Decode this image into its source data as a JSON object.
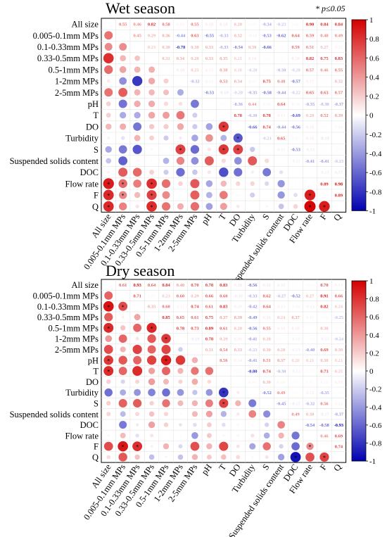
{
  "note": "* p≤0.05",
  "colorbar": {
    "ticks": [
      "1",
      "0.8",
      "0.6",
      "0.4",
      "0.2",
      "0",
      "-0.2",
      "-0.4",
      "-0.6",
      "-0.8",
      "-1"
    ],
    "colors": {
      "positive": "#d40000",
      "neutral": "#ffffff",
      "negative": "#0000b0"
    }
  },
  "chart_data": [
    {
      "type": "heatmap",
      "title": "Wet season",
      "variables": [
        "All size",
        "0.005-0.1mm MPs",
        "0.1-0.33mm MPs",
        "0.33-0.5mm MPs",
        "0.5-1mm MPs",
        "1-2mm MPs",
        "2-5mm MPs",
        "pH",
        "T",
        "DO",
        "Turbidity",
        "S",
        "Suspended solids content",
        "DOC",
        "Flow rate",
        "F",
        "Q"
      ],
      "values": [
        [
          1,
          0.55,
          0.46,
          0.82,
          0.58,
          0.09,
          0.55,
          0.18,
          0.18,
          0.28,
          0.06,
          -0.34,
          -0.23,
          0.06,
          0.9,
          0.84,
          0.84
        ],
        [
          0.55,
          1,
          0.45,
          0.29,
          0.36,
          -0.44,
          0.63,
          -0.55,
          -0.33,
          0.32,
          -0.11,
          -0.53,
          -0.62,
          0.64,
          0.59,
          0.48,
          0.49
        ],
        [
          0.46,
          0.45,
          1,
          0.23,
          0.3,
          -0.78,
          0.3,
          0.33,
          -0.33,
          -0.54,
          0.3,
          -0.66,
          0.03,
          0.59,
          0.51,
          0.27,
          0.11
        ],
        [
          0.82,
          0.29,
          0.23,
          1,
          0.31,
          0.34,
          0.28,
          0.33,
          0.35,
          0.21,
          0.18,
          0.04,
          0.03,
          0.18,
          0.82,
          0.75,
          0.83
        ],
        [
          0.58,
          0.36,
          0.3,
          0.31,
          1,
          0.19,
          0.25,
          0.15,
          0.38,
          0.2,
          -0.2,
          0.02,
          -0.3,
          -0.2,
          0.57,
          0.46,
          0.55
        ],
        [
          0.09,
          -0.44,
          -0.78,
          0.34,
          0.19,
          1,
          -0.32,
          0.12,
          0.53,
          0.34,
          -0.07,
          0.75,
          0.48,
          -0.57,
          0.17,
          0.02,
          0.32
        ],
        [
          0.55,
          0.63,
          0.3,
          0.28,
          0.25,
          -0.32,
          1,
          -0.53,
          -0.19,
          -0.2,
          -0.35,
          -0.58,
          -0.44,
          -0.22,
          0.65,
          0.63,
          0.57
        ],
        [
          0.18,
          -0.55,
          0.33,
          0.33,
          0.15,
          0.12,
          -0.53,
          1,
          0.02,
          -0.36,
          0.44,
          0.1,
          0.64,
          0.1,
          -0.35,
          -0.3,
          -0.37
        ],
        [
          0.18,
          -0.33,
          -0.33,
          0.35,
          0.38,
          0.53,
          -0.19,
          0.02,
          1,
          0.78,
          -0.3,
          0.78,
          0.15,
          -0.69,
          0.28,
          0.52,
          0.39
        ],
        [
          0.28,
          0.32,
          -0.54,
          0.21,
          0.2,
          0.34,
          -0.2,
          -0.36,
          0.78,
          1,
          -0.66,
          0.74,
          -0.44,
          -0.56,
          0.16,
          0.03,
          0.09
        ],
        [
          0.06,
          -0.11,
          0.3,
          0.18,
          -0.2,
          -0.07,
          -0.35,
          0.44,
          -0.3,
          -0.66,
          1,
          -0.21,
          0.65,
          0.07,
          0.16,
          -0.19,
          0.01
        ],
        [
          -0.34,
          -0.53,
          -0.66,
          0.04,
          0.02,
          0.75,
          -0.58,
          0.1,
          0.78,
          0.74,
          -0.21,
          1,
          0.15,
          -0.53,
          -0.15,
          0.02,
          0.04
        ],
        [
          -0.23,
          -0.62,
          0.03,
          0.03,
          -0.3,
          0.48,
          -0.44,
          0.64,
          0.15,
          -0.44,
          0.65,
          0.15,
          1,
          -0.11,
          -0.41,
          -0.41,
          -0.23
        ],
        [
          0.06,
          0.64,
          0.59,
          0.18,
          -0.2,
          -0.57,
          -0.22,
          0.1,
          -0.69,
          -0.56,
          0.07,
          -0.53,
          -0.11,
          1,
          0.02,
          -0.13,
          0.17
        ],
        [
          0.9,
          0.59,
          0.51,
          0.82,
          0.57,
          0.17,
          0.65,
          -0.35,
          0.28,
          0.16,
          0.16,
          -0.15,
          -0.41,
          0.02,
          1,
          0.89,
          0.98
        ],
        [
          0.84,
          0.48,
          0.27,
          0.75,
          0.46,
          0.02,
          0.63,
          -0.3,
          0.52,
          0.03,
          -0.19,
          0.02,
          -0.41,
          -0.13,
          0.89,
          1,
          0.89
        ],
        [
          0.84,
          0.49,
          0.11,
          0.83,
          0.55,
          0.32,
          0.57,
          -0.37,
          0.39,
          0.09,
          0.01,
          0.04,
          -0.23,
          0.17,
          0.98,
          0.89,
          1
        ]
      ],
      "significant": [
        [
          0,
          14
        ],
        [
          0,
          15
        ],
        [
          0,
          16
        ],
        [
          1,
          14
        ],
        [
          1,
          15
        ],
        [
          3,
          14
        ],
        [
          3,
          15
        ],
        [
          3,
          16
        ],
        [
          5,
          11
        ],
        [
          8,
          9
        ],
        [
          8,
          11
        ],
        [
          9,
          10
        ],
        [
          9,
          11
        ],
        [
          14,
          15
        ],
        [
          14,
          16
        ],
        [
          15,
          16
        ]
      ]
    },
    {
      "type": "heatmap",
      "title": "Dry season",
      "variables": [
        "All size",
        "0.005-0.1mm MPs",
        "0.1-0.33mm MPs",
        "0.33-0.5mm MPs",
        "0.5-1mm MPs",
        "1-2mm MPs",
        "2-5mm MPs",
        "pH",
        "T",
        "DO",
        "Turbidity",
        "S",
        "Suspended solids content",
        "DOC",
        "Flow rate",
        "F",
        "Q"
      ],
      "values": [
        [
          1,
          0.61,
          0.93,
          0.64,
          0.84,
          0.4,
          0.7,
          0.78,
          0.83,
          0.18,
          -0.56,
          0.18,
          0.16,
          0.02,
          -0.04,
          0.7,
          0.14
        ],
        [
          0.61,
          1,
          0.71,
          0.07,
          0.23,
          0.6,
          0.29,
          0.66,
          0.6,
          -0.16,
          -0.33,
          0.62,
          -0.27,
          -0.52,
          0.27,
          0.91,
          0.66
        ],
        [
          0.93,
          0.71,
          1,
          0.35,
          0.6,
          0.11,
          0.74,
          0.61,
          0.83,
          0.16,
          -0.42,
          0.64,
          0.15,
          -0.08,
          -0.12,
          0.82,
          0.24
        ],
        [
          0.64,
          0.07,
          0.35,
          1,
          0.85,
          0.65,
          0.61,
          0.75,
          0.37,
          0.39,
          -0.49,
          0.18,
          0.24,
          0.37,
          0.11,
          0.06,
          -0.25
        ],
        [
          0.84,
          0.23,
          0.6,
          0.85,
          1,
          0.78,
          0.73,
          0.89,
          0.61,
          0.28,
          -0.56,
          0.55,
          0.16,
          0.18,
          -0.01,
          0.3,
          0.05
        ],
        [
          0.4,
          0.6,
          0.11,
          0.65,
          0.78,
          1,
          -0.19,
          0.78,
          0.29,
          0.16,
          -0.41,
          0.28,
          0.03,
          -0.1,
          0.03,
          -0.15,
          -0.24
        ],
        [
          0.7,
          0.29,
          0.74,
          0.61,
          0.73,
          -0.19,
          1,
          0.31,
          0.54,
          0.33,
          -0.23,
          0.3,
          0.28,
          -0.13,
          -0.4,
          0.69,
          0.3
        ],
        [
          0.78,
          0.66,
          0.61,
          0.75,
          0.89,
          0.78,
          0.31,
          1,
          0.56,
          0.14,
          -0.41,
          0.51,
          0.37,
          0.2,
          0.21,
          0.3,
          0.21
        ],
        [
          0.83,
          0.6,
          0.83,
          0.37,
          0.61,
          0.29,
          0.54,
          0.56,
          1,
          0.04,
          -0.8,
          0.74,
          -0.3,
          -0.13,
          0.04,
          0.73,
          0.25
        ],
        [
          0.18,
          -0.16,
          0.16,
          0.39,
          0.28,
          0.16,
          0.33,
          0.14,
          0.04,
          1,
          0.08,
          0.3,
          0.09,
          0.04,
          0.05,
          0.11,
          0.15
        ],
        [
          -0.56,
          -0.33,
          -0.42,
          -0.49,
          -0.56,
          -0.41,
          -0.23,
          -0.41,
          -0.8,
          0.08,
          1,
          -0.52,
          0.49,
          0.03,
          0.12,
          -0.35,
          0.03
        ],
        [
          0.18,
          0.62,
          0.64,
          0.18,
          0.55,
          0.28,
          0.3,
          0.51,
          0.74,
          0.3,
          -0.52,
          1,
          -0.45,
          -0.17,
          -0.32,
          0.56,
          0.11
        ],
        [
          0.16,
          -0.27,
          0.15,
          0.24,
          0.16,
          0.03,
          0.28,
          0.37,
          -0.3,
          0.09,
          0.49,
          -0.45,
          1,
          0.49,
          0.3,
          -0.17,
          -0.37
        ],
        [
          0.02,
          -0.52,
          -0.08,
          0.37,
          0.18,
          -0.1,
          -0.13,
          0.2,
          -0.13,
          0.04,
          0.03,
          -0.17,
          0.49,
          1,
          -0.54,
          -0.58,
          -0.93
        ],
        [
          -0.04,
          0.27,
          -0.12,
          0.11,
          -0.01,
          0.03,
          -0.4,
          0.21,
          0.04,
          0.05,
          0.12,
          -0.32,
          0.3,
          -0.54,
          1,
          0.46,
          0.69
        ],
        [
          0.7,
          0.91,
          0.82,
          0.06,
          0.3,
          -0.15,
          0.69,
          0.3,
          0.73,
          0.11,
          -0.35,
          0.56,
          -0.17,
          -0.58,
          0.46,
          1,
          0.74
        ],
        [
          0.14,
          0.66,
          0.24,
          -0.25,
          0.05,
          -0.24,
          0.3,
          0.21,
          0.25,
          0.15,
          0.03,
          0.11,
          -0.37,
          -0.93,
          0.69,
          0.74,
          1
        ]
      ],
      "significant": [
        [
          0,
          2
        ],
        [
          0,
          4
        ],
        [
          0,
          7
        ],
        [
          0,
          8
        ],
        [
          1,
          2
        ],
        [
          1,
          15
        ],
        [
          2,
          15
        ],
        [
          3,
          4
        ],
        [
          4,
          5
        ],
        [
          4,
          7
        ],
        [
          8,
          10
        ],
        [
          8,
          11
        ],
        [
          13,
          16
        ],
        [
          14,
          15
        ],
        [
          15,
          16
        ]
      ]
    }
  ]
}
